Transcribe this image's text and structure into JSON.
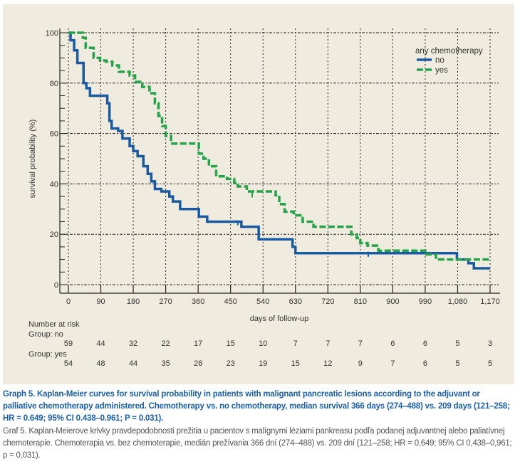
{
  "chart_data": {
    "type": "line",
    "subtype": "kaplan-meier step",
    "title": "",
    "xlabel": "days of follow-up",
    "ylabel": "survival probability (%)",
    "xlim": [
      0,
      1170
    ],
    "ylim": [
      0,
      100
    ],
    "x_ticks": [
      0,
      90,
      180,
      270,
      360,
      450,
      540,
      630,
      720,
      810,
      900,
      990,
      1080,
      1170
    ],
    "x_tick_labels": [
      "0",
      "90",
      "180",
      "270",
      "360",
      "450",
      "540",
      "630",
      "720",
      "810",
      "900",
      "990",
      "1,080",
      "1,170"
    ],
    "y_ticks": [
      0,
      20,
      40,
      60,
      80,
      100
    ],
    "y_tick_labels": [
      "0",
      "20",
      "40",
      "60",
      "80",
      "100"
    ],
    "grid": true,
    "legend": {
      "title": "any chemotherapy",
      "position": "top-right"
    },
    "series": [
      {
        "name": "no",
        "color": "#1a5aa0",
        "style": "solid",
        "points": [
          [
            0,
            100
          ],
          [
            6,
            97
          ],
          [
            16,
            93
          ],
          [
            25,
            88
          ],
          [
            42,
            80
          ],
          [
            50,
            78
          ],
          [
            60,
            75
          ],
          [
            104,
            75
          ],
          [
            108,
            72
          ],
          [
            114,
            65
          ],
          [
            120,
            62
          ],
          [
            138,
            61
          ],
          [
            150,
            58
          ],
          [
            170,
            55
          ],
          [
            180,
            53
          ],
          [
            192,
            51
          ],
          [
            208,
            47
          ],
          [
            220,
            44
          ],
          [
            230,
            41
          ],
          [
            240,
            38
          ],
          [
            258,
            37
          ],
          [
            280,
            35
          ],
          [
            290,
            33
          ],
          [
            310,
            30
          ],
          [
            350,
            30
          ],
          [
            362,
            27
          ],
          [
            385,
            25
          ],
          [
            475,
            25
          ],
          [
            480,
            23
          ],
          [
            525,
            23
          ],
          [
            528,
            18
          ],
          [
            620,
            18
          ],
          [
            622,
            15
          ],
          [
            630,
            12.5
          ],
          [
            1075,
            12.5
          ],
          [
            1078,
            10
          ],
          [
            1110,
            8.5
          ],
          [
            1125,
            6.5
          ],
          [
            1170,
            6.5
          ]
        ],
        "censor_marks": [
          [
            470,
            25
          ],
          [
            832,
            12.5
          ]
        ]
      },
      {
        "name": "yes",
        "color": "#26a24a",
        "style": "dashed",
        "points": [
          [
            0,
            100
          ],
          [
            40,
            98
          ],
          [
            48,
            94
          ],
          [
            70,
            90
          ],
          [
            88,
            89
          ],
          [
            105,
            88.5
          ],
          [
            122,
            87
          ],
          [
            140,
            84.5
          ],
          [
            170,
            83
          ],
          [
            185,
            80.5
          ],
          [
            205,
            78.5
          ],
          [
            225,
            76
          ],
          [
            240,
            72
          ],
          [
            250,
            67
          ],
          [
            260,
            63
          ],
          [
            270,
            59
          ],
          [
            285,
            56
          ],
          [
            355,
            56
          ],
          [
            362,
            52
          ],
          [
            375,
            50
          ],
          [
            390,
            47
          ],
          [
            410,
            43
          ],
          [
            440,
            42
          ],
          [
            460,
            40.5
          ],
          [
            470,
            39
          ],
          [
            495,
            37
          ],
          [
            565,
            37
          ],
          [
            575,
            35.5
          ],
          [
            585,
            32
          ],
          [
            600,
            29
          ],
          [
            625,
            27.5
          ],
          [
            650,
            25
          ],
          [
            680,
            23
          ],
          [
            775,
            23
          ],
          [
            785,
            20
          ],
          [
            800,
            18.5
          ],
          [
            810,
            16.5
          ],
          [
            830,
            15.5
          ],
          [
            860,
            13.5
          ],
          [
            985,
            13.5
          ],
          [
            990,
            12
          ],
          [
            1020,
            10
          ],
          [
            1170,
            10
          ]
        ],
        "censor_marks": [
          [
            510,
            36
          ]
        ]
      }
    ],
    "number_at_risk": {
      "label": "Number at risk",
      "groups": [
        {
          "label": "Group: no",
          "values": [
            59,
            44,
            32,
            22,
            17,
            15,
            10,
            7,
            7,
            7,
            6,
            6,
            5,
            3
          ]
        },
        {
          "label": "Group: yes",
          "values": [
            54,
            48,
            44,
            35,
            28,
            23,
            19,
            15,
            12,
            9,
            7,
            6,
            5,
            5
          ]
        }
      ]
    }
  },
  "caption": {
    "english": "Graph 5. Kaplan-Meier curves for survival probability in patients with malignant pancreatic lesions according to the adjuvant or palliative chemotherapy administered. Chemotherapy vs. no chemotherapy, median survival 366 days (274–488) vs. 209 days (121–258; HR = 0.649; 95% CI 0.438–0.961; P = 0.031).",
    "slovak": "Graf 5. Kaplan-Meierove krivky pravdepodobnosti prežitia u pacientov s malígnymi léziami pankreasu podľa podanej adjuvantnej alebo paliatívnej chemoterapie. Chemoterapia vs. bez chemoterapie, medián prežívania 366 dní (274–488) vs. 209 dní (121–258; HR = 0,649; 95% CI 0,438–0,961; p = 0,031)."
  }
}
